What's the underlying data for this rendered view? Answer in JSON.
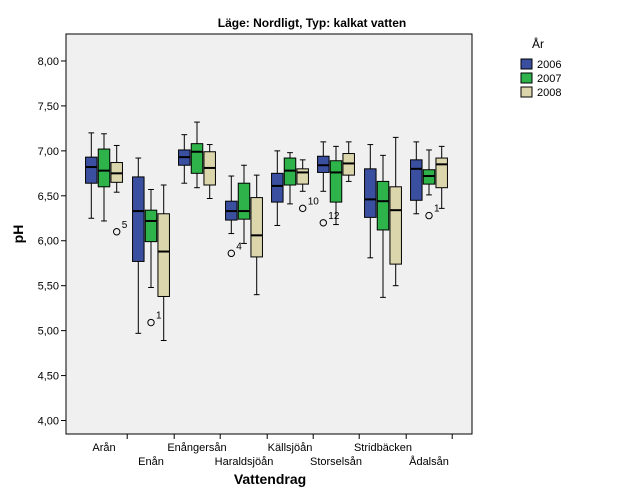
{
  "chart_data": {
    "type": "boxplot",
    "title": "Läge: Nordligt, Typ: kalkat vatten",
    "xlabel": "Vattendrag",
    "ylabel": "pH",
    "ylim": [
      3.85,
      8.3
    ],
    "yticks": [
      "4,00",
      "4,50",
      "5,00",
      "5,50",
      "6,00",
      "6,50",
      "7,00",
      "7,50",
      "8,00"
    ],
    "ytick_values": [
      4.0,
      4.5,
      5.0,
      5.5,
      6.0,
      6.5,
      7.0,
      7.5,
      8.0
    ],
    "legend": {
      "title": "År",
      "placement": "right"
    },
    "categories": [
      "Arån",
      "Enån",
      "Enångersån",
      "Haraldsjöån",
      "Källsjöån",
      "Storselsån",
      "Stridbäcken",
      "Ådalsån"
    ],
    "grid": false,
    "series": [
      {
        "name": "2006",
        "color": "#3a4fa0",
        "boxes": [
          {
            "lo": 6.25,
            "q1": 6.64,
            "med": 6.82,
            "q3": 6.93,
            "hi": 7.2
          },
          {
            "lo": 4.97,
            "q1": 5.77,
            "med": 6.33,
            "q3": 6.71,
            "hi": 6.92
          },
          {
            "lo": 6.64,
            "q1": 6.84,
            "med": 6.93,
            "q3": 7.01,
            "hi": 7.18
          },
          {
            "lo": 6.08,
            "q1": 6.23,
            "med": 6.33,
            "q3": 6.44,
            "hi": 6.72
          },
          {
            "lo": 6.17,
            "q1": 6.43,
            "med": 6.61,
            "q3": 6.75,
            "hi": 7.0
          },
          {
            "lo": 6.55,
            "q1": 6.76,
            "med": 6.84,
            "q3": 6.94,
            "hi": 7.1
          },
          {
            "lo": 5.81,
            "q1": 6.26,
            "med": 6.46,
            "q3": 6.8,
            "hi": 7.07
          },
          {
            "lo": 6.3,
            "q1": 6.45,
            "med": 6.8,
            "q3": 6.9,
            "hi": 7.1
          }
        ]
      },
      {
        "name": "2007",
        "color": "#2db34a",
        "boxes": [
          {
            "lo": 6.22,
            "q1": 6.6,
            "med": 6.78,
            "q3": 7.02,
            "hi": 7.19
          },
          {
            "lo": 5.48,
            "q1": 5.99,
            "med": 6.22,
            "q3": 6.34,
            "hi": 6.57
          },
          {
            "lo": 6.59,
            "q1": 6.75,
            "med": 6.99,
            "q3": 7.08,
            "hi": 7.32
          },
          {
            "lo": 5.97,
            "q1": 6.24,
            "med": 6.33,
            "q3": 6.64,
            "hi": 6.84
          },
          {
            "lo": 6.41,
            "q1": 6.62,
            "med": 6.78,
            "q3": 6.92,
            "hi": 6.98
          },
          {
            "lo": 6.18,
            "q1": 6.43,
            "med": 6.76,
            "q3": 6.89,
            "hi": 7.05
          },
          {
            "lo": 5.37,
            "q1": 6.12,
            "med": 6.44,
            "q3": 6.66,
            "hi": 6.95
          },
          {
            "lo": 6.51,
            "q1": 6.63,
            "med": 6.72,
            "q3": 6.79,
            "hi": 7.01
          }
        ]
      },
      {
        "name": "2008",
        "color": "#dcd6ac",
        "boxes": [
          {
            "lo": 6.54,
            "q1": 6.65,
            "med": 6.75,
            "q3": 6.87,
            "hi": 7.06
          },
          {
            "lo": 4.89,
            "q1": 5.38,
            "med": 5.88,
            "q3": 6.3,
            "hi": 6.62
          },
          {
            "lo": 6.47,
            "q1": 6.62,
            "med": 6.81,
            "q3": 6.99,
            "hi": 7.07
          },
          {
            "lo": 5.4,
            "q1": 5.82,
            "med": 6.06,
            "q3": 6.48,
            "hi": 6.73
          },
          {
            "lo": 6.55,
            "q1": 6.63,
            "med": 6.76,
            "q3": 6.8,
            "hi": 6.9
          },
          {
            "lo": 6.66,
            "q1": 6.73,
            "med": 6.86,
            "q3": 6.97,
            "hi": 7.1
          },
          {
            "lo": 5.5,
            "q1": 5.74,
            "med": 6.34,
            "q3": 6.6,
            "hi": 7.15
          },
          {
            "lo": 6.36,
            "q1": 6.59,
            "med": 6.85,
            "q3": 6.92,
            "hi": 7.05
          }
        ]
      }
    ],
    "outliers": [
      {
        "category": 0,
        "series": 2,
        "value": 6.1,
        "label": "5"
      },
      {
        "category": 1,
        "series": 1,
        "value": 5.09,
        "label": "1"
      },
      {
        "category": 3,
        "series": 0,
        "value": 5.86,
        "label": "4"
      },
      {
        "category": 4,
        "series": 2,
        "value": 6.36,
        "label": "10"
      },
      {
        "category": 5,
        "series": 0,
        "value": 6.2,
        "label": "12"
      },
      {
        "category": 7,
        "series": 1,
        "value": 6.28,
        "label": "1"
      }
    ]
  }
}
